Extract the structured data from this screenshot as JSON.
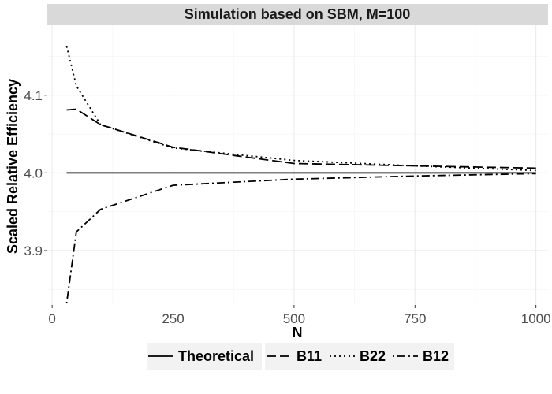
{
  "chart_data": {
    "type": "line",
    "title": "Simulation based on SBM, M=100",
    "xlabel": "N",
    "ylabel": "Scaled Relative Efficiency",
    "xlim": [
      -10,
      1025
    ],
    "ylim": [
      3.83,
      4.19
    ],
    "x_ticks": [
      0,
      250,
      500,
      750,
      1000
    ],
    "x_tick_labels": [
      "0",
      "250",
      "500",
      "750",
      "1000"
    ],
    "y_ticks": [
      3.9,
      4.0,
      4.1
    ],
    "y_tick_labels": [
      "3.9",
      "4.0",
      "4.1"
    ],
    "grid": true,
    "legend_position": "bottom",
    "x": [
      30,
      50,
      100,
      250,
      500,
      750,
      1000
    ],
    "series": [
      {
        "name": "Theoretical",
        "linetype": "solid",
        "values": [
          4.0,
          4.0,
          4.0,
          4.0,
          4.0,
          4.0,
          4.0
        ]
      },
      {
        "name": "B11",
        "linetype": "dashed",
        "values": [
          4.081,
          4.082,
          4.062,
          4.033,
          4.012,
          4.009,
          4.006
        ]
      },
      {
        "name": "B22",
        "linetype": "dotted",
        "values": [
          4.163,
          4.112,
          4.062,
          4.032,
          4.016,
          4.009,
          4.003
        ]
      },
      {
        "name": "B12",
        "linetype": "dotdash",
        "values": [
          3.832,
          3.924,
          3.953,
          3.984,
          3.992,
          3.996,
          3.999
        ]
      }
    ]
  },
  "colors": {
    "panel_background": "#ffffff",
    "strip_background": "#d9d9d9",
    "line_color": "#000000",
    "legend_key_background": "#f2f2f2"
  }
}
